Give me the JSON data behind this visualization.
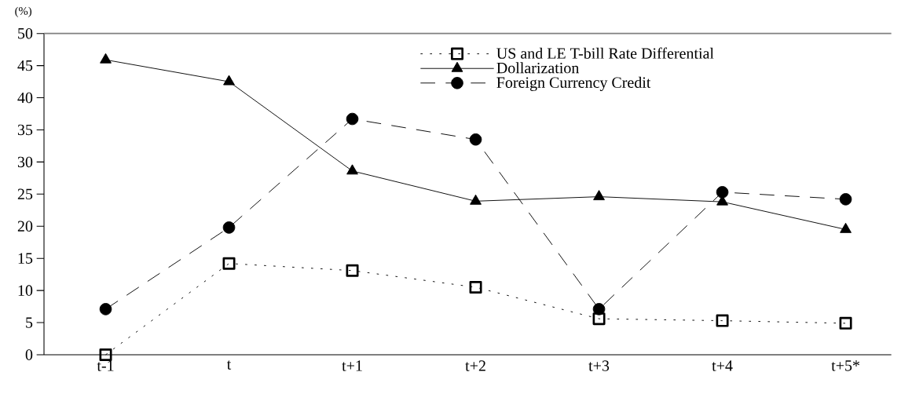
{
  "chart_data": {
    "type": "line",
    "ylabel": "(%)",
    "categories": [
      "t-1",
      "t",
      "t+1",
      "t+2",
      "t+3",
      "t+4",
      "t+5*"
    ],
    "series": [
      {
        "name": "US and LE T-bill Rate Differential",
        "color": "#000000",
        "marker": "square",
        "line_style": "dotted",
        "values": [
          0,
          14.2,
          13.1,
          10.5,
          5.6,
          5.3,
          4.9
        ]
      },
      {
        "name": "Dollarization",
        "color": "#000000",
        "marker": "triangle",
        "line_style": "solid",
        "values": [
          45.9,
          42.5,
          28.6,
          23.9,
          24.6,
          23.8,
          19.5
        ]
      },
      {
        "name": "Foreign Currency Credit",
        "color": "#000000",
        "marker": "circle",
        "line_style": "dashed",
        "values": [
          7.1,
          19.8,
          36.7,
          33.5,
          7.1,
          25.3,
          24.2
        ]
      }
    ],
    "ylim": [
      0,
      50
    ],
    "yticks": [
      0,
      5,
      10,
      15,
      20,
      25,
      30,
      35,
      40,
      45,
      50
    ],
    "grid": false,
    "legend": "top right"
  }
}
